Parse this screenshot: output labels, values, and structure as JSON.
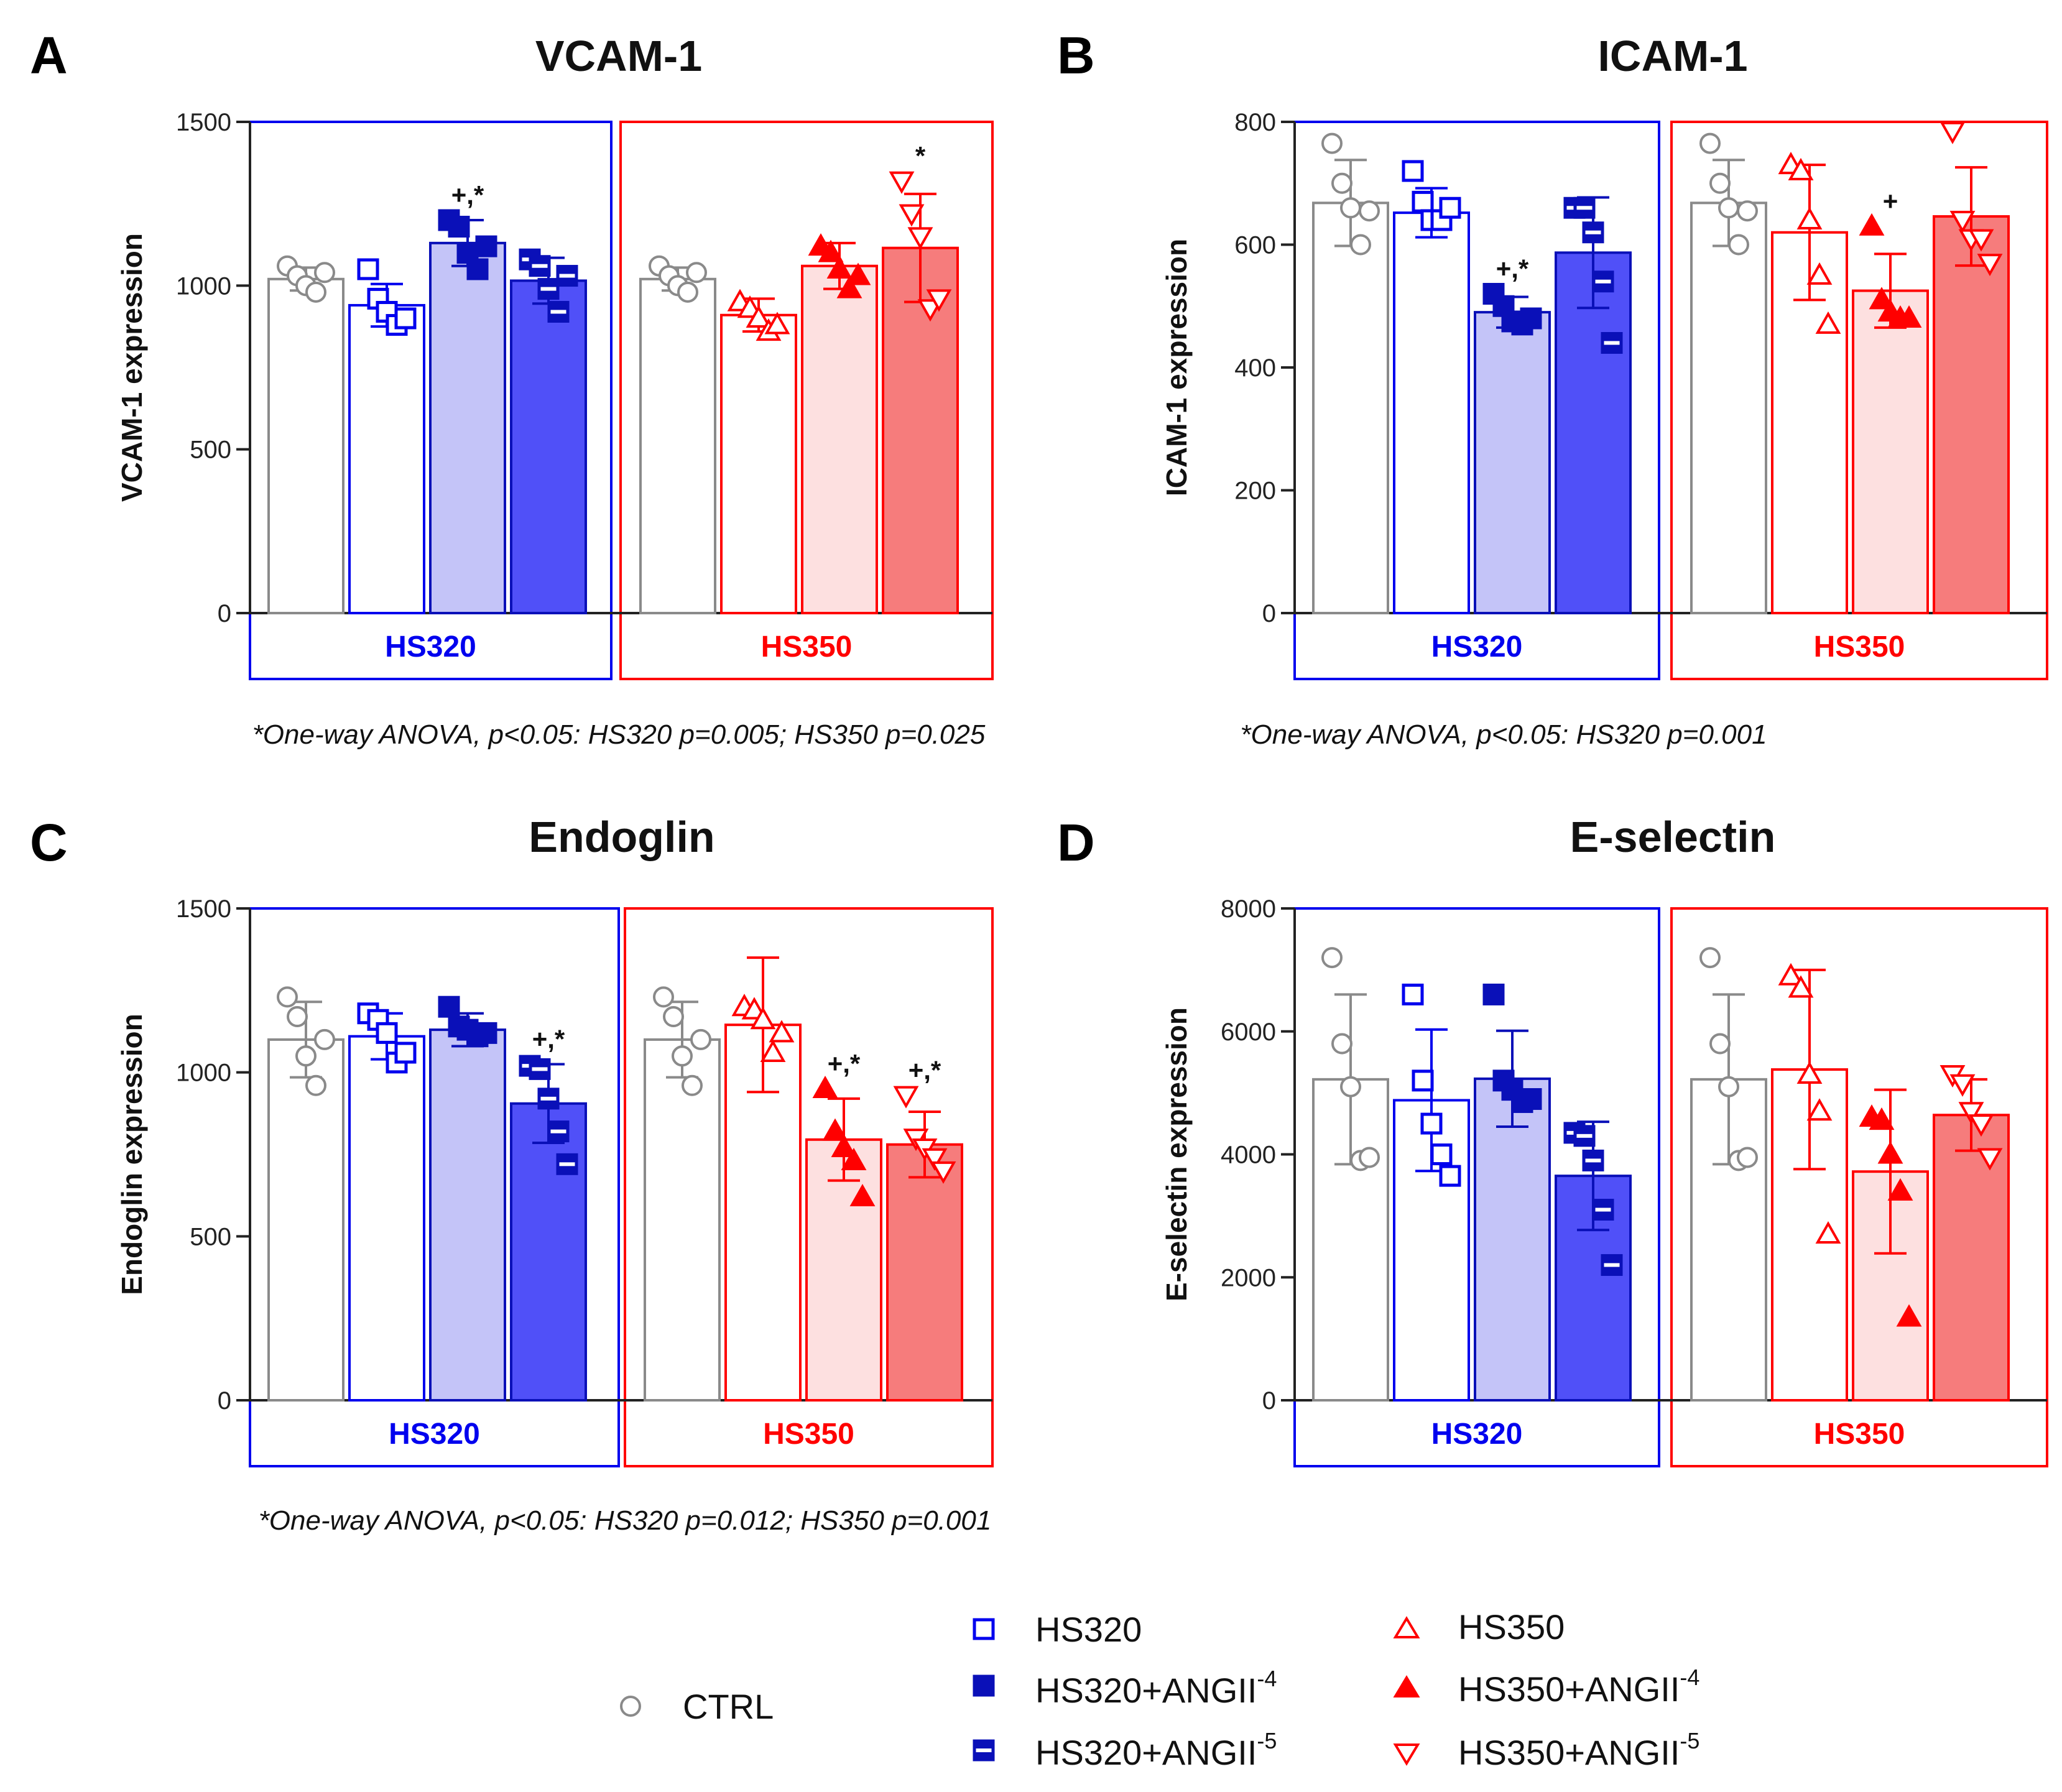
{
  "colors": {
    "blue": "#0000ee",
    "dark_blue": "#0a10b8",
    "red": "#ff0000",
    "gray": "#8a8a8a",
    "fill_hs320_angii4": "#c4c4f8",
    "fill_hs320_angii5": "#5050f8",
    "fill_hs350_angii4": "#fde0e0",
    "fill_hs350_angii5": "#f67c7c"
  },
  "legend": {
    "ctrl": "CTRL",
    "hs320": "HS320",
    "hs320_angii4": "HS320+ANGII",
    "hs320_angii4_sup": "-4",
    "hs320_angii5": "HS320+ANGII",
    "hs320_angii5_sup": "-5",
    "hs350": "HS350",
    "hs350_angii4": "HS350+ANGII",
    "hs350_angii4_sup": "-4",
    "hs350_angii5": "HS350+ANGII",
    "hs350_angii5_sup": "-5"
  },
  "chart_data": [
    {
      "type": "bar",
      "panel": "A",
      "title": "VCAM-1",
      "ylabel": "VCAM-1 expression",
      "ylim": [
        0,
        1500
      ],
      "yticks": [
        0,
        500,
        1000,
        1500
      ],
      "group_labels": [
        "HS320",
        "HS350"
      ],
      "categories": [
        "CTRL",
        "HS320",
        "HS320+ANGII-4",
        "HS320+ANGII-5",
        "CTRL",
        "HS350",
        "HS350+ANGII-4",
        "HS350+ANGII-5"
      ],
      "values": [
        1020,
        940,
        1130,
        1015,
        1020,
        910,
        1060,
        1115
      ],
      "errors": [
        35,
        65,
        70,
        70,
        35,
        50,
        70,
        165
      ],
      "points": [
        [
          1060,
          1030,
          1000,
          980,
          1040
        ],
        [
          1050,
          960,
          920,
          880,
          900
        ],
        [
          1200,
          1180,
          1100,
          1050,
          1120
        ],
        [
          1080,
          1060,
          990,
          920,
          1030
        ],
        [
          1060,
          1030,
          1000,
          980,
          1040
        ],
        [
          950,
          930,
          900,
          860,
          880
        ],
        [
          1120,
          1100,
          1050,
          990,
          1030
        ],
        [
          1320,
          1220,
          1150,
          930,
          960
        ]
      ],
      "significance": [
        "",
        "",
        "+,*",
        "",
        "",
        "",
        "",
        "*"
      ],
      "footnote": "*One-way ANOVA, p<0.05: HS320 p=0.005; HS350 p=0.025"
    },
    {
      "type": "bar",
      "panel": "B",
      "title": "ICAM-1",
      "ylabel": "ICAM-1 expression",
      "ylim": [
        0,
        800
      ],
      "yticks": [
        0,
        200,
        400,
        600,
        800
      ],
      "group_labels": [
        "HS320",
        "HS350"
      ],
      "categories": [
        "CTRL",
        "HS320",
        "HS320+ANGII-4",
        "HS320+ANGII-5",
        "CTRL",
        "HS350",
        "HS350+ANGII-4",
        "HS350+ANGII-5"
      ],
      "values": [
        668,
        652,
        490,
        587,
        668,
        620,
        525,
        646
      ],
      "errors": [
        70,
        40,
        25,
        90,
        70,
        110,
        60,
        80
      ],
      "points": [
        [
          765,
          700,
          660,
          600,
          655
        ],
        [
          720,
          670,
          640,
          640,
          660
        ],
        [
          520,
          500,
          475,
          470,
          480
        ],
        [
          660,
          660,
          620,
          540,
          440
        ],
        [
          765,
          700,
          660,
          600,
          655
        ],
        [
          730,
          720,
          640,
          550,
          470
        ],
        [
          630,
          510,
          490,
          480,
          480
        ],
        [
          785,
          640,
          610,
          610,
          570
        ]
      ],
      "significance": [
        "",
        "",
        "+,*",
        "",
        "",
        "",
        "+",
        ""
      ],
      "footnote": "*One-way ANOVA, p<0.05: HS320 p=0.001"
    },
    {
      "type": "bar",
      "panel": "C",
      "title": "Endoglin",
      "ylabel": "Endoglin expression",
      "ylim": [
        0,
        1500
      ],
      "yticks": [
        0,
        500,
        1000,
        1500
      ],
      "group_labels": [
        "HS320",
        "HS350"
      ],
      "categories": [
        "CTRL",
        "HS320",
        "HS320+ANGII-4",
        "HS320+ANGII-5",
        "CTRL",
        "HS350",
        "HS350+ANGII-4",
        "HS350+ANGII-5"
      ],
      "values": [
        1100,
        1110,
        1130,
        905,
        1100,
        1145,
        795,
        780
      ],
      "errors": [
        115,
        70,
        50,
        120,
        115,
        205,
        125,
        100
      ],
      "points": [
        [
          1230,
          1170,
          1050,
          960,
          1100
        ],
        [
          1180,
          1160,
          1120,
          1030,
          1060
        ],
        [
          1200,
          1140,
          1130,
          1110,
          1120
        ],
        [
          1020,
          1010,
          920,
          820,
          720
        ],
        [
          1230,
          1170,
          1050,
          960,
          1100
        ],
        [
          1200,
          1190,
          1160,
          1060,
          1120
        ],
        [
          950,
          820,
          770,
          730,
          620
        ],
        [
          930,
          800,
          770,
          740,
          700
        ]
      ],
      "significance": [
        "",
        "",
        "",
        "+,*",
        "",
        "",
        "+,*",
        "+,*"
      ],
      "footnote": "*One-way ANOVA, p<0.05: HS320 p=0.012; HS350 p=0.001"
    },
    {
      "type": "bar",
      "panel": "D",
      "title": "E-selectin",
      "ylabel": "E-selectin expression",
      "ylim": [
        0,
        8000
      ],
      "yticks": [
        0,
        2000,
        4000,
        6000,
        8000
      ],
      "group_labels": [
        "HS320",
        "HS350"
      ],
      "categories": [
        "CTRL",
        "HS320",
        "HS320+ANGII-4",
        "HS320+ANGII-5",
        "CTRL",
        "HS350",
        "HS350+ANGII-4",
        "HS350+ANGII-5"
      ],
      "values": [
        5220,
        4880,
        5230,
        3650,
        5220,
        5380,
        3720,
        4640
      ],
      "errors": [
        1380,
        1150,
        780,
        880,
        1380,
        1620,
        1330,
        580
      ],
      "points": [
        [
          7200,
          5800,
          5100,
          3900,
          3950
        ],
        [
          6600,
          5200,
          4500,
          4000,
          3650
        ],
        [
          6600,
          5200,
          5050,
          4850,
          4900
        ],
        [
          4350,
          4300,
          3900,
          3100,
          2200
        ],
        [
          7200,
          5800,
          5100,
          3900,
          3950
        ],
        [
          6900,
          6700,
          5300,
          4700,
          2700
        ],
        [
          4600,
          4550,
          4000,
          3400,
          1350
        ],
        [
          5300,
          5150,
          4700,
          4500,
          3950
        ]
      ],
      "significance": [
        "",
        "",
        "",
        "",
        "",
        "",
        "",
        ""
      ],
      "footnote": ""
    }
  ]
}
